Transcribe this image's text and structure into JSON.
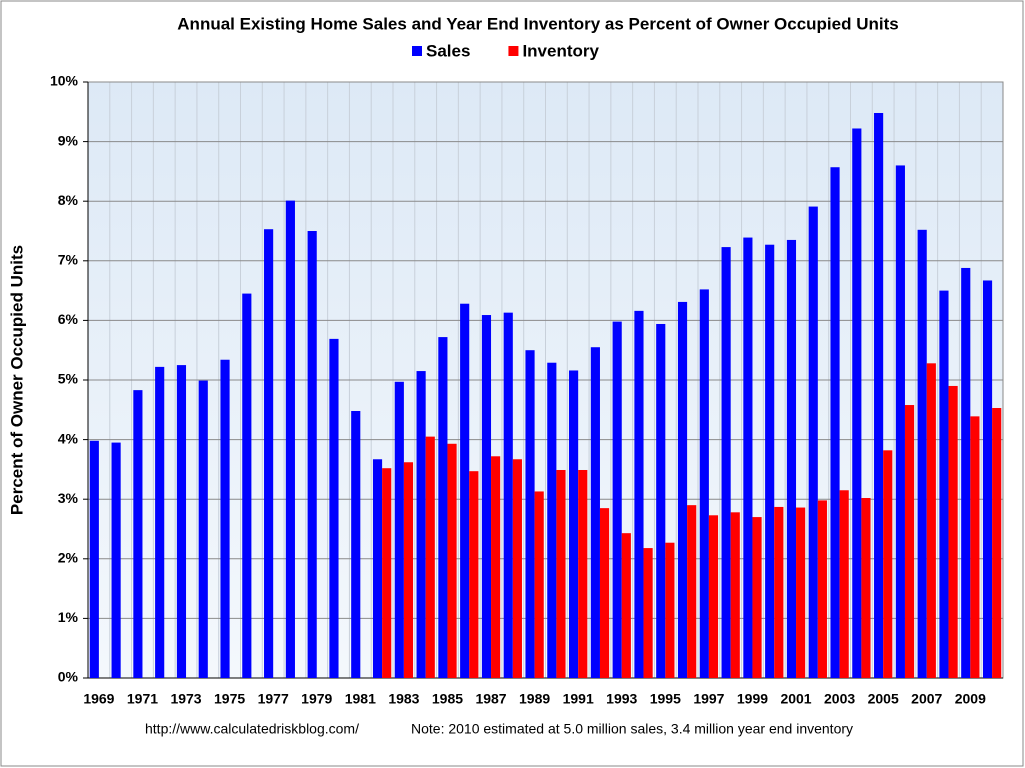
{
  "chart_data": {
    "type": "bar",
    "title": "Annual Existing Home Sales and Year End Inventory as Percent of Owner Occupied Units",
    "y_label": "Percent of Owner Occupied Units",
    "footer_url": "http://www.calculatedriskblog.com/",
    "footer_note": "Note: 2010 estimated at 5.0 million sales, 3.4 million year end inventory",
    "categories": [
      "1969",
      null,
      "1971",
      null,
      "1973",
      null,
      "1975",
      null,
      "1977",
      null,
      "1979",
      null,
      "1981",
      null,
      "1983",
      null,
      "1985",
      null,
      "1987",
      null,
      "1989",
      null,
      "1991",
      null,
      "1993",
      null,
      "1995",
      null,
      "1997",
      null,
      "1999",
      null,
      "2001",
      null,
      "2003",
      null,
      "2005",
      null,
      "2007",
      null,
      "2009",
      null
    ],
    "series": [
      {
        "name": "Sales",
        "color": "#0000ff",
        "values": [
          3.98,
          3.95,
          4.83,
          5.22,
          5.25,
          4.99,
          5.34,
          6.45,
          7.53,
          8.01,
          7.5,
          5.69,
          4.48,
          3.67,
          4.97,
          5.15,
          5.72,
          6.28,
          6.09,
          6.13,
          5.5,
          5.29,
          5.16,
          5.55,
          5.98,
          6.16,
          5.94,
          6.31,
          6.52,
          7.23,
          7.39,
          7.27,
          7.35,
          7.91,
          8.57,
          9.22,
          9.48,
          8.6,
          7.52,
          6.5,
          6.88,
          6.67
        ]
      },
      {
        "name": "Inventory",
        "color": "#ff0000",
        "values": [
          null,
          null,
          null,
          null,
          null,
          null,
          null,
          null,
          null,
          null,
          null,
          null,
          null,
          3.52,
          3.62,
          4.05,
          3.93,
          3.47,
          3.72,
          3.67,
          3.13,
          3.49,
          3.49,
          2.85,
          2.43,
          2.18,
          2.27,
          2.9,
          2.73,
          2.78,
          2.7,
          2.87,
          2.86,
          2.98,
          3.15,
          3.02,
          3.82,
          4.58,
          5.28,
          4.9,
          4.39,
          4.53
        ]
      }
    ],
    "ylim": [
      0,
      10
    ],
    "yticks": [
      {
        "value": 0,
        "label": "0%"
      },
      {
        "value": 1,
        "label": "1%"
      },
      {
        "value": 2,
        "label": "2%"
      },
      {
        "value": 3,
        "label": "3%"
      },
      {
        "value": 4,
        "label": "4%"
      },
      {
        "value": 5,
        "label": "5%"
      },
      {
        "value": 6,
        "label": "6%"
      },
      {
        "value": 7,
        "label": "7%"
      },
      {
        "value": 8,
        "label": "8%"
      },
      {
        "value": 9,
        "label": "9%"
      },
      {
        "value": 10,
        "label": "10%"
      }
    ],
    "grid": true
  }
}
